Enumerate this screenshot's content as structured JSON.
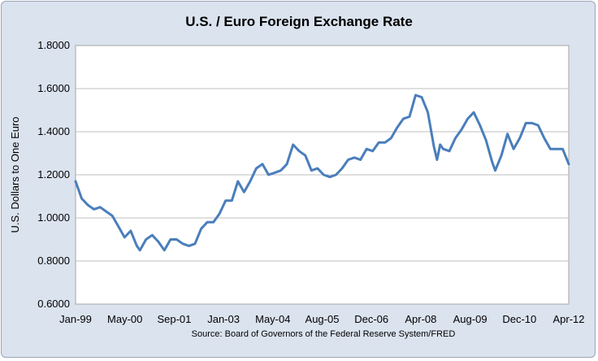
{
  "chart_data": {
    "type": "line",
    "title": "U.S. / Euro Foreign Exchange Rate",
    "xlabel": "",
    "ylabel": "U.S. Dollars to One Euro",
    "source": "Source: Board of Governors of the Federal Reserve System/FRED",
    "ylim": [
      0.6,
      1.8
    ],
    "y_ticks": [
      "0.6000",
      "0.8000",
      "1.0000",
      "1.2000",
      "1.4000",
      "1.6000",
      "1.8000"
    ],
    "x_tick_labels": [
      "Jan-99",
      "May-00",
      "Sep-01",
      "Jan-03",
      "May-04",
      "Aug-05",
      "Dec-06",
      "Apr-08",
      "Aug-09",
      "Dec-10",
      "Apr-12"
    ],
    "x_range": [
      "1999-01",
      "2012-06"
    ],
    "grid": "horizontal",
    "line_color": "#4a7ebb",
    "series": [
      {
        "x": [
          "1999-01",
          "1999-03",
          "1999-05",
          "1999-07",
          "1999-09",
          "1999-11",
          "2000-01",
          "2000-03",
          "2000-05",
          "2000-07",
          "2000-09",
          "2000-10",
          "2000-12",
          "2001-02",
          "2001-04",
          "2001-06",
          "2001-08",
          "2001-10",
          "2001-12",
          "2002-02",
          "2002-04",
          "2002-06",
          "2002-08",
          "2002-10",
          "2002-12",
          "2003-02",
          "2003-04",
          "2003-06",
          "2003-08",
          "2003-10",
          "2003-12",
          "2004-02",
          "2004-04",
          "2004-06",
          "2004-08",
          "2004-10",
          "2004-12",
          "2005-02",
          "2005-04",
          "2005-06",
          "2005-08",
          "2005-10",
          "2005-12",
          "2006-02",
          "2006-04",
          "2006-06",
          "2006-08",
          "2006-10",
          "2006-12",
          "2007-02",
          "2007-04",
          "2007-06",
          "2007-08",
          "2007-10",
          "2007-12",
          "2008-02",
          "2008-04",
          "2008-06",
          "2008-08",
          "2008-10",
          "2008-11",
          "2008-12",
          "2009-01",
          "2009-03",
          "2009-05",
          "2009-07",
          "2009-09",
          "2009-11",
          "2010-01",
          "2010-03",
          "2010-05",
          "2010-06",
          "2010-08",
          "2010-10",
          "2010-12",
          "2011-02",
          "2011-04",
          "2011-06",
          "2011-08",
          "2011-10",
          "2011-12",
          "2012-02",
          "2012-04",
          "2012-06"
        ],
        "values": [
          1.17,
          1.09,
          1.06,
          1.04,
          1.05,
          1.03,
          1.01,
          0.96,
          0.91,
          0.94,
          0.87,
          0.85,
          0.9,
          0.92,
          0.89,
          0.85,
          0.9,
          0.9,
          0.88,
          0.87,
          0.88,
          0.95,
          0.98,
          0.98,
          1.02,
          1.08,
          1.08,
          1.17,
          1.12,
          1.17,
          1.23,
          1.25,
          1.2,
          1.21,
          1.22,
          1.25,
          1.34,
          1.31,
          1.29,
          1.22,
          1.23,
          1.2,
          1.19,
          1.2,
          1.23,
          1.27,
          1.28,
          1.27,
          1.32,
          1.31,
          1.35,
          1.35,
          1.37,
          1.42,
          1.46,
          1.47,
          1.57,
          1.56,
          1.49,
          1.33,
          1.27,
          1.34,
          1.32,
          1.31,
          1.37,
          1.41,
          1.46,
          1.49,
          1.43,
          1.36,
          1.26,
          1.22,
          1.29,
          1.39,
          1.32,
          1.37,
          1.44,
          1.44,
          1.43,
          1.37,
          1.32,
          1.32,
          1.32,
          1.25
        ]
      }
    ]
  }
}
